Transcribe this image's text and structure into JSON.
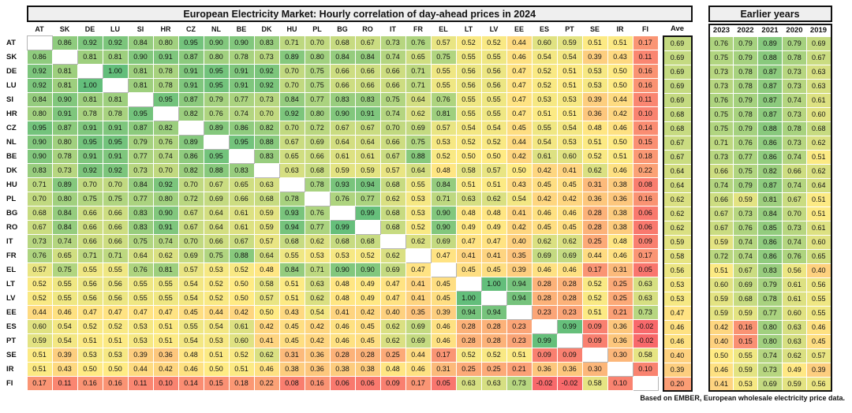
{
  "title": "European Electricity Market: Hourly correlation of day-ahead prices in 2024",
  "earlier_years_title": "Earlier years",
  "footer": "Based on EMBER, European wholesale electricity price data.",
  "chart_data": {
    "type": "heatmap",
    "ave_label": "Ave",
    "row_labels": [
      "AT",
      "SK",
      "DE",
      "LU",
      "SI",
      "HR",
      "CZ",
      "NL",
      "BE",
      "DK",
      "HU",
      "PL",
      "BG",
      "RO",
      "IT",
      "FR",
      "EL",
      "LT",
      "LV",
      "EE",
      "ES",
      "PT",
      "SE",
      "IR",
      "FI"
    ],
    "col_labels": [
      "AT",
      "SK",
      "DE",
      "LU",
      "SI",
      "HR",
      "CZ",
      "NL",
      "BE",
      "DK",
      "HU",
      "PL",
      "BG",
      "RO",
      "IT",
      "FR",
      "EL",
      "LT",
      "LV",
      "EE",
      "ES",
      "PT",
      "SE",
      "IR",
      "FI"
    ],
    "year_labels": [
      "2023",
      "2022",
      "2021",
      "2020",
      "2019"
    ],
    "matrix": [
      [
        null,
        0.86,
        0.92,
        0.92,
        0.84,
        0.8,
        0.95,
        0.9,
        0.9,
        0.83,
        0.71,
        0.7,
        0.68,
        0.67,
        0.73,
        0.76,
        0.57,
        0.52,
        0.52,
        0.44,
        0.6,
        0.59,
        0.51,
        0.51,
        0.17
      ],
      [
        0.86,
        null,
        0.81,
        0.81,
        0.9,
        0.91,
        0.87,
        0.8,
        0.78,
        0.73,
        0.89,
        0.8,
        0.84,
        0.84,
        0.74,
        0.65,
        0.75,
        0.55,
        0.55,
        0.46,
        0.54,
        0.54,
        0.39,
        0.43,
        0.11
      ],
      [
        0.92,
        0.81,
        null,
        1.0,
        0.81,
        0.78,
        0.91,
        0.95,
        0.91,
        0.92,
        0.7,
        0.75,
        0.66,
        0.66,
        0.66,
        0.71,
        0.55,
        0.56,
        0.56,
        0.47,
        0.52,
        0.51,
        0.53,
        0.5,
        0.16
      ],
      [
        0.92,
        0.81,
        1.0,
        null,
        0.81,
        0.78,
        0.91,
        0.95,
        0.91,
        0.92,
        0.7,
        0.75,
        0.66,
        0.66,
        0.66,
        0.71,
        0.55,
        0.56,
        0.56,
        0.47,
        0.52,
        0.51,
        0.53,
        0.5,
        0.16
      ],
      [
        0.84,
        0.9,
        0.81,
        0.81,
        null,
        0.95,
        0.87,
        0.79,
        0.77,
        0.73,
        0.84,
        0.77,
        0.83,
        0.83,
        0.75,
        0.64,
        0.76,
        0.55,
        0.55,
        0.47,
        0.53,
        0.53,
        0.39,
        0.44,
        0.11
      ],
      [
        0.8,
        0.91,
        0.78,
        0.78,
        0.95,
        null,
        0.82,
        0.76,
        0.74,
        0.7,
        0.92,
        0.8,
        0.9,
        0.91,
        0.74,
        0.62,
        0.81,
        0.55,
        0.55,
        0.47,
        0.51,
        0.51,
        0.36,
        0.42,
        0.1
      ],
      [
        0.95,
        0.87,
        0.91,
        0.91,
        0.87,
        0.82,
        null,
        0.89,
        0.86,
        0.82,
        0.7,
        0.72,
        0.67,
        0.67,
        0.7,
        0.69,
        0.57,
        0.54,
        0.54,
        0.45,
        0.55,
        0.54,
        0.48,
        0.46,
        0.14
      ],
      [
        0.9,
        0.8,
        0.95,
        0.95,
        0.79,
        0.76,
        0.89,
        null,
        0.95,
        0.88,
        0.67,
        0.69,
        0.64,
        0.64,
        0.66,
        0.75,
        0.53,
        0.52,
        0.52,
        0.44,
        0.54,
        0.53,
        0.51,
        0.5,
        0.15
      ],
      [
        0.9,
        0.78,
        0.91,
        0.91,
        0.77,
        0.74,
        0.86,
        0.95,
        null,
        0.83,
        0.65,
        0.66,
        0.61,
        0.61,
        0.67,
        0.88,
        0.52,
        0.5,
        0.5,
        0.42,
        0.61,
        0.6,
        0.52,
        0.51,
        0.18
      ],
      [
        0.83,
        0.73,
        0.92,
        0.92,
        0.73,
        0.7,
        0.82,
        0.88,
        0.83,
        null,
        0.63,
        0.68,
        0.59,
        0.59,
        0.57,
        0.64,
        0.48,
        0.58,
        0.57,
        0.5,
        0.42,
        0.41,
        0.62,
        0.46,
        0.22
      ],
      [
        0.71,
        0.89,
        0.7,
        0.7,
        0.84,
        0.92,
        0.7,
        0.67,
        0.65,
        0.63,
        null,
        0.78,
        0.93,
        0.94,
        0.68,
        0.55,
        0.84,
        0.51,
        0.51,
        0.43,
        0.45,
        0.45,
        0.31,
        0.38,
        0.08
      ],
      [
        0.7,
        0.8,
        0.75,
        0.75,
        0.77,
        0.8,
        0.72,
        0.69,
        0.66,
        0.68,
        0.78,
        null,
        0.76,
        0.77,
        0.62,
        0.53,
        0.71,
        0.63,
        0.62,
        0.54,
        0.42,
        0.42,
        0.36,
        0.36,
        0.16
      ],
      [
        0.68,
        0.84,
        0.66,
        0.66,
        0.83,
        0.9,
        0.67,
        0.64,
        0.61,
        0.59,
        0.93,
        0.76,
        null,
        0.99,
        0.68,
        0.53,
        0.9,
        0.48,
        0.48,
        0.41,
        0.46,
        0.46,
        0.28,
        0.38,
        0.06
      ],
      [
        0.67,
        0.84,
        0.66,
        0.66,
        0.83,
        0.91,
        0.67,
        0.64,
        0.61,
        0.59,
        0.94,
        0.77,
        0.99,
        null,
        0.68,
        0.52,
        0.9,
        0.49,
        0.49,
        0.42,
        0.45,
        0.45,
        0.28,
        0.38,
        0.06
      ],
      [
        0.73,
        0.74,
        0.66,
        0.66,
        0.75,
        0.74,
        0.7,
        0.66,
        0.67,
        0.57,
        0.68,
        0.62,
        0.68,
        0.68,
        null,
        0.62,
        0.69,
        0.47,
        0.47,
        0.4,
        0.62,
        0.62,
        0.25,
        0.48,
        0.09
      ],
      [
        0.76,
        0.65,
        0.71,
        0.71,
        0.64,
        0.62,
        0.69,
        0.75,
        0.88,
        0.64,
        0.55,
        0.53,
        0.53,
        0.52,
        0.62,
        null,
        0.47,
        0.41,
        0.41,
        0.35,
        0.69,
        0.69,
        0.44,
        0.46,
        0.17
      ],
      [
        0.57,
        0.75,
        0.55,
        0.55,
        0.76,
        0.81,
        0.57,
        0.53,
        0.52,
        0.48,
        0.84,
        0.71,
        0.9,
        0.9,
        0.69,
        0.47,
        null,
        0.45,
        0.45,
        0.39,
        0.46,
        0.46,
        0.17,
        0.31,
        0.05
      ],
      [
        0.52,
        0.55,
        0.56,
        0.56,
        0.55,
        0.55,
        0.54,
        0.52,
        0.5,
        0.58,
        0.51,
        0.63,
        0.48,
        0.49,
        0.47,
        0.41,
        0.45,
        null,
        1.0,
        0.94,
        0.28,
        0.28,
        0.52,
        0.25,
        0.63
      ],
      [
        0.52,
        0.55,
        0.56,
        0.56,
        0.55,
        0.55,
        0.54,
        0.52,
        0.5,
        0.57,
        0.51,
        0.62,
        0.48,
        0.49,
        0.47,
        0.41,
        0.45,
        1.0,
        null,
        0.94,
        0.28,
        0.28,
        0.52,
        0.25,
        0.63
      ],
      [
        0.44,
        0.46,
        0.47,
        0.47,
        0.47,
        0.47,
        0.45,
        0.44,
        0.42,
        0.5,
        0.43,
        0.54,
        0.41,
        0.42,
        0.4,
        0.35,
        0.39,
        0.94,
        0.94,
        null,
        0.23,
        0.23,
        0.51,
        0.21,
        0.73
      ],
      [
        0.6,
        0.54,
        0.52,
        0.52,
        0.53,
        0.51,
        0.55,
        0.54,
        0.61,
        0.42,
        0.45,
        0.42,
        0.46,
        0.45,
        0.62,
        0.69,
        0.46,
        0.28,
        0.28,
        0.23,
        null,
        0.99,
        0.09,
        0.36,
        -0.02
      ],
      [
        0.59,
        0.54,
        0.51,
        0.51,
        0.53,
        0.51,
        0.54,
        0.53,
        0.6,
        0.41,
        0.45,
        0.42,
        0.46,
        0.45,
        0.62,
        0.69,
        0.46,
        0.28,
        0.28,
        0.23,
        0.99,
        null,
        0.09,
        0.36,
        -0.02
      ],
      [
        0.51,
        0.39,
        0.53,
        0.53,
        0.39,
        0.36,
        0.48,
        0.51,
        0.52,
        0.62,
        0.31,
        0.36,
        0.28,
        0.28,
        0.25,
        0.44,
        0.17,
        0.52,
        0.52,
        0.51,
        0.09,
        0.09,
        null,
        0.3,
        0.58
      ],
      [
        0.51,
        0.43,
        0.5,
        0.5,
        0.44,
        0.42,
        0.46,
        0.5,
        0.51,
        0.46,
        0.38,
        0.36,
        0.38,
        0.38,
        0.48,
        0.46,
        0.31,
        0.25,
        0.25,
        0.21,
        0.36,
        0.36,
        0.3,
        null,
        0.1
      ],
      [
        0.17,
        0.11,
        0.16,
        0.16,
        0.11,
        0.1,
        0.14,
        0.15,
        0.18,
        0.22,
        0.08,
        0.16,
        0.06,
        0.06,
        0.09,
        0.17,
        0.05,
        0.63,
        0.63,
        0.73,
        -0.02,
        -0.02,
        0.58,
        0.1,
        null
      ]
    ],
    "ave": [
      0.69,
      0.69,
      0.69,
      0.69,
      0.69,
      0.68,
      0.68,
      0.67,
      0.67,
      0.64,
      0.64,
      0.62,
      0.62,
      0.62,
      0.59,
      0.58,
      0.56,
      0.53,
      0.53,
      0.47,
      0.46,
      0.46,
      0.4,
      0.39,
      0.2
    ],
    "years": [
      [
        0.76,
        0.79,
        0.89,
        0.79,
        0.69
      ],
      [
        0.75,
        0.79,
        0.88,
        0.78,
        0.67
      ],
      [
        0.73,
        0.78,
        0.87,
        0.73,
        0.63
      ],
      [
        0.73,
        0.78,
        0.87,
        0.73,
        0.63
      ],
      [
        0.76,
        0.79,
        0.87,
        0.74,
        0.61
      ],
      [
        0.75,
        0.78,
        0.87,
        0.73,
        0.6
      ],
      [
        0.75,
        0.79,
        0.88,
        0.78,
        0.68
      ],
      [
        0.71,
        0.76,
        0.86,
        0.73,
        0.62
      ],
      [
        0.73,
        0.77,
        0.86,
        0.74,
        0.51
      ],
      [
        0.66,
        0.75,
        0.82,
        0.66,
        0.62
      ],
      [
        0.74,
        0.79,
        0.87,
        0.74,
        0.64
      ],
      [
        0.66,
        0.59,
        0.81,
        0.67,
        0.51
      ],
      [
        0.67,
        0.73,
        0.84,
        0.7,
        0.51
      ],
      [
        0.67,
        0.76,
        0.85,
        0.73,
        0.61
      ],
      [
        0.59,
        0.74,
        0.86,
        0.74,
        0.6
      ],
      [
        0.72,
        0.74,
        0.86,
        0.76,
        0.65
      ],
      [
        0.51,
        0.67,
        0.83,
        0.56,
        0.4
      ],
      [
        0.6,
        0.69,
        0.79,
        0.61,
        0.56
      ],
      [
        0.59,
        0.68,
        0.78,
        0.61,
        0.55
      ],
      [
        0.59,
        0.59,
        0.77,
        0.6,
        0.55
      ],
      [
        0.42,
        0.16,
        0.8,
        0.63,
        0.46
      ],
      [
        0.4,
        0.15,
        0.8,
        0.63,
        0.45
      ],
      [
        0.5,
        0.55,
        0.74,
        0.62,
        0.57
      ],
      [
        0.46,
        0.59,
        0.73,
        0.49,
        0.39
      ],
      [
        0.41,
        0.53,
        0.69,
        0.59,
        0.56
      ]
    ],
    "colors": {
      "low": "#F8696B",
      "mid": "#FFEB84",
      "high": "#63BE7B"
    },
    "scale": {
      "min": 0,
      "mid": 0.5,
      "max": 1
    },
    "grid": "white-gridlines",
    "legend": "none"
  }
}
